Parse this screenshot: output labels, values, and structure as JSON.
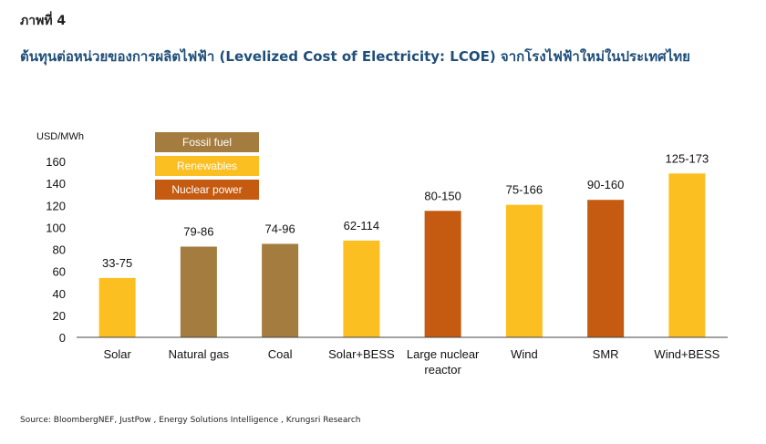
{
  "figure_label": "ภาพที่ 4",
  "title": "ต้นทุนต่อหน่วยของการผลิตไฟฟ้า (Levelized Cost of Electricity: LCOE) จากโรงไฟฟ้าใหม่ในประเทศไทย",
  "source": "Source: BloombergNEF, JustPow , Energy Solutions Intelligence , Krungsri Research",
  "colors": {
    "fossil": "#a57c3f",
    "renewable": "#fcbf22",
    "nuclear": "#c55a11",
    "axis": "#444444"
  },
  "chart_data": {
    "type": "bar",
    "ylabel": "USD/MWh",
    "ylim": [
      0,
      160
    ],
    "yticks": [
      0,
      20,
      40,
      60,
      80,
      100,
      120,
      140,
      160
    ],
    "categories": [
      {
        "label": [
          "Solar"
        ],
        "value": 54,
        "range_label": "33-75",
        "group": "renewable"
      },
      {
        "label": [
          "Natural gas"
        ],
        "value": 82.5,
        "range_label": "79-86",
        "group": "fossil"
      },
      {
        "label": [
          "Coal"
        ],
        "value": 85,
        "range_label": "74-96",
        "group": "fossil"
      },
      {
        "label": [
          "Solar+BESS"
        ],
        "value": 88,
        "range_label": "62-114",
        "group": "renewable"
      },
      {
        "label": [
          "Large nuclear",
          "reactor"
        ],
        "value": 115,
        "range_label": "80-150",
        "group": "nuclear"
      },
      {
        "label": [
          "Wind"
        ],
        "value": 120.5,
        "range_label": "75-166",
        "group": "renewable"
      },
      {
        "label": [
          "SMR"
        ],
        "value": 125,
        "range_label": "90-160",
        "group": "nuclear"
      },
      {
        "label": [
          "Wind+BESS"
        ],
        "value": 149,
        "range_label": "125-173",
        "group": "renewable"
      }
    ],
    "legend": [
      {
        "key": "fossil",
        "label": "Fossil fuel"
      },
      {
        "key": "renewable",
        "label": "Renewables"
      },
      {
        "key": "nuclear",
        "label": "Nuclear power"
      }
    ]
  }
}
